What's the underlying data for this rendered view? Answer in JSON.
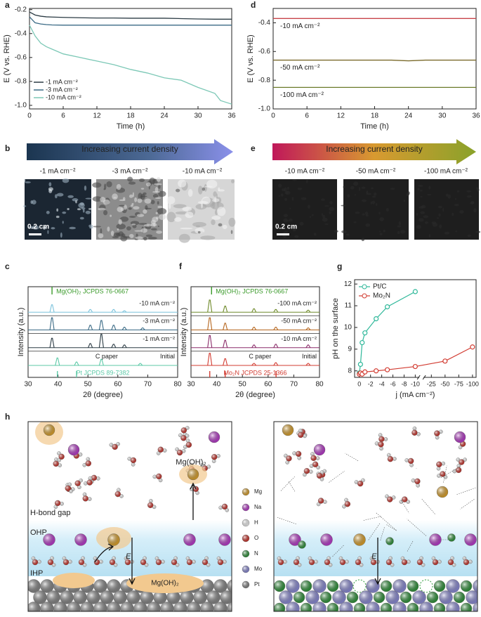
{
  "chart_data": [
    {
      "label": "a",
      "type": "line",
      "x_label": "Time (h)",
      "y_label": "E (V vs. RHE)",
      "xlim": [
        0,
        36
      ],
      "xticks": [
        0,
        6,
        12,
        18,
        24,
        30,
        36
      ],
      "ylim": [
        -1.03,
        -0.19
      ],
      "yticks": [
        {
          "value": -1,
          "label": "-1.0"
        },
        -0.8,
        -0.6,
        -0.4,
        -0.2
      ],
      "legend": "lower left",
      "x": [
        0,
        1,
        2,
        3,
        4,
        6,
        9,
        12,
        15,
        18,
        21,
        24,
        27,
        30,
        33,
        34,
        36
      ],
      "series": [
        {
          "name": "-1 mA cm⁻²",
          "color": "#2b3b44",
          "values": [
            -0.22,
            -0.245,
            -0.255,
            -0.26,
            -0.262,
            -0.265,
            -0.268,
            -0.27,
            -0.27,
            -0.272,
            -0.272,
            -0.272,
            -0.275,
            -0.278,
            -0.28,
            -0.28,
            -0.28
          ]
        },
        {
          "name": "-3 mA cm⁻²",
          "color": "#3a6a85",
          "values": [
            -0.26,
            -0.31,
            -0.32,
            -0.325,
            -0.328,
            -0.33,
            -0.33,
            -0.33,
            -0.33,
            -0.33,
            -0.33,
            -0.33,
            -0.33,
            -0.33,
            -0.33,
            -0.33,
            -0.33
          ]
        },
        {
          "name": "-10 mA cm⁻²",
          "color": "#7cc8b6",
          "values": [
            -0.33,
            -0.42,
            -0.48,
            -0.51,
            -0.53,
            -0.57,
            -0.6,
            -0.63,
            -0.66,
            -0.7,
            -0.73,
            -0.77,
            -0.79,
            -0.85,
            -0.9,
            -0.96,
            -0.99
          ]
        }
      ]
    },
    {
      "label": "d",
      "type": "line",
      "x_label": "Time (h)",
      "y_label": "E (V vs. RHE)",
      "xlim": [
        0,
        36
      ],
      "xticks": [
        0,
        6,
        12,
        18,
        24,
        30,
        36
      ],
      "ylim": [
        -1,
        -0.3
      ],
      "yticks": [
        {
          "value": -1,
          "label": "-1.0"
        },
        -0.8,
        -0.6,
        -0.4
      ],
      "legend": "inline",
      "x": [
        0,
        1,
        2,
        3,
        4,
        6,
        9,
        12,
        15,
        18,
        21,
        24,
        27,
        30,
        33,
        34,
        36
      ],
      "series": [
        {
          "name": "-10 mA cm⁻²",
          "color": "#c8444a",
          "values": [
            -0.37,
            -0.37,
            -0.37,
            -0.37,
            -0.37,
            -0.37,
            -0.37,
            -0.37,
            -0.37,
            -0.37,
            -0.37,
            -0.37,
            -0.37,
            -0.37,
            -0.37,
            -0.37,
            -0.37
          ]
        },
        {
          "name": "-50 mA cm⁻²",
          "color": "#7a6a2a",
          "values": [
            -0.66,
            -0.66,
            -0.66,
            -0.66,
            -0.66,
            -0.66,
            -0.66,
            -0.66,
            -0.66,
            -0.66,
            -0.66,
            -0.665,
            -0.66,
            -0.66,
            -0.66,
            -0.66,
            -0.66
          ]
        },
        {
          "name": "-100 mA cm⁻²",
          "color": "#6b7a2a",
          "values": [
            -0.85,
            -0.85,
            -0.85,
            -0.85,
            -0.85,
            -0.85,
            -0.85,
            -0.85,
            -0.85,
            -0.85,
            -0.85,
            -0.85,
            -0.85,
            -0.85,
            -0.85,
            -0.85,
            -0.85
          ]
        }
      ]
    },
    {
      "label": "c",
      "type": "xrd",
      "x_label": "2θ (degree)",
      "y_label": "Intensity (a.u.)",
      "xlim": [
        30,
        80
      ],
      "xticks": [
        30,
        40,
        50,
        60,
        70,
        80
      ],
      "series": [
        {
          "name": "Initial",
          "note": "C paper",
          "color": "#5cc9a7",
          "peaks_x": [
            39.8,
            46.2,
            54.5,
            67.5
          ],
          "peaks_h": [
            0.55,
            0.25,
            0.45,
            0.15
          ]
        },
        {
          "name": "-1 mA cm⁻²",
          "color": "#2b3b44",
          "peaks_x": [
            38,
            50.8,
            54.5,
            58.6,
            62.2
          ],
          "peaks_h": [
            0.7,
            0.3,
            1.0,
            0.25,
            0.2
          ]
        },
        {
          "name": "-3 mA cm⁻²",
          "color": "#3a6a85",
          "peaks_x": [
            38,
            50.8,
            54.5,
            58.6,
            62.2,
            68.3
          ],
          "peaks_h": [
            0.9,
            0.35,
            0.7,
            0.35,
            0.2,
            0.15
          ]
        },
        {
          "name": "-10 mA cm⁻²",
          "color": "#7cc3dc",
          "peaks_x": [
            38,
            50.8,
            58.6,
            62.2
          ],
          "peaks_h": [
            0.55,
            0.2,
            0.2,
            0.1
          ]
        }
      ],
      "references": [
        {
          "name": "Mg(OH)₂ JCPDS 76-0667",
          "color": "#3a9a2a",
          "position": "top",
          "peaks_x": [
            38
          ]
        },
        {
          "name": "Pt JCPDS 89-7382",
          "color": "#5cc9a7",
          "position": "bottom",
          "peaks_x": [
            39.8,
            46.2
          ]
        }
      ]
    },
    {
      "label": "f",
      "type": "xrd",
      "x_label": "2θ (degree)",
      "y_label": "Intensity (a.u.)",
      "xlim": [
        30,
        80
      ],
      "xticks": [
        30,
        40,
        50,
        60,
        70,
        80
      ],
      "series": [
        {
          "name": "Initial",
          "note": "C paper",
          "color": "#d23c32",
          "peaks_x": [
            37.3,
            43.3,
            54.5,
            63,
            75.6
          ],
          "peaks_h": [
            0.9,
            0.5,
            0.15,
            0.2,
            0.15
          ]
        },
        {
          "name": "-10 mA cm⁻²",
          "color": "#8b2c6a",
          "peaks_x": [
            37.3,
            43.3,
            54.5,
            63,
            75.6
          ],
          "peaks_h": [
            0.9,
            0.55,
            0.2,
            0.25,
            0.2
          ]
        },
        {
          "name": "-50 mA cm⁻²",
          "color": "#b5651d",
          "peaks_x": [
            37.3,
            43.3,
            54.5,
            63,
            75.6
          ],
          "peaks_h": [
            0.9,
            0.5,
            0.2,
            0.2,
            0.15
          ]
        },
        {
          "name": "-100 mA cm⁻²",
          "color": "#6f8a2a",
          "peaks_x": [
            37.3,
            43.3,
            54.5,
            63,
            75.6
          ],
          "peaks_h": [
            0.9,
            0.45,
            0.25,
            0.2,
            0.15
          ]
        }
      ],
      "references": [
        {
          "name": "Mg(OH)₂ JCPDS 76-0667",
          "color": "#3a9a2a",
          "position": "top",
          "peaks_x": [
            38
          ]
        },
        {
          "name": "Mo₂N JCPDS 25-1366",
          "color": "#d23c32",
          "position": "bottom",
          "peaks_x": [
            37.3,
            43.3,
            63.1
          ]
        }
      ]
    },
    {
      "label": "g",
      "type": "scatter-line",
      "x_label": "j (mA cm⁻²)",
      "y_label": "pH on the surface",
      "x_segments": [
        {
          "xlim": [
            0.6,
            -10.6
          ],
          "xticks": [
            0,
            -2,
            -4,
            -6,
            -8,
            -10
          ]
        },
        {
          "xlim": [
            -12,
            -104
          ],
          "xticks": [
            -25,
            -50,
            -75,
            -100
          ]
        }
      ],
      "ylim": [
        7.7,
        12.2
      ],
      "yticks": [
        8,
        9,
        10,
        11,
        12
      ],
      "legend": "upper left",
      "series": [
        {
          "name": "Pt/C",
          "color": "#2fb89a",
          "x": [
            0,
            -0.2,
            -0.5,
            -1,
            -3,
            -5,
            -10
          ],
          "values": [
            7.9,
            8.3,
            9.3,
            9.75,
            10.4,
            10.95,
            11.65
          ]
        },
        {
          "name": "Mo₂N",
          "color": "#d23c32",
          "x": [
            0,
            -0.2,
            -0.5,
            -1,
            -3,
            -5,
            -10,
            -50,
            -100
          ],
          "values": [
            7.85,
            7.9,
            7.85,
            7.95,
            8.0,
            8.05,
            8.2,
            8.45,
            9.1
          ]
        }
      ]
    }
  ],
  "panels": {
    "b": {
      "label": "b",
      "arrow_text": "Increasing current density",
      "conditions": [
        "-1 mA cm⁻²",
        "-3 mA cm⁻²",
        "-10 mA cm⁻²"
      ],
      "scale_bar": "0.2 cm"
    },
    "e": {
      "label": "e",
      "arrow_text": "Increasing current density",
      "conditions": [
        "-10 mA cm⁻²",
        "-50 mA cm⁻²",
        "-100 mA cm⁻²"
      ],
      "scale_bar": "0.2 cm"
    },
    "h": {
      "label": "h",
      "mg_oh2": "Mg(OH)₂",
      "hbond_gap": "H-bond gap",
      "ohp": "OHP",
      "ihp": "IHP",
      "field": "E",
      "legend": [
        {
          "name": "Mg",
          "color": "#e8a92a"
        },
        {
          "name": "Na",
          "color": "#c23ad6"
        },
        {
          "name": "H",
          "color": "#ffffff"
        },
        {
          "name": "O",
          "color": "#d9332a"
        },
        {
          "name": "N",
          "color": "#2e9a3a"
        },
        {
          "name": "Mo",
          "color": "#8f8fe0"
        },
        {
          "name": "Pt",
          "color": "#8a8a8a"
        }
      ]
    }
  }
}
